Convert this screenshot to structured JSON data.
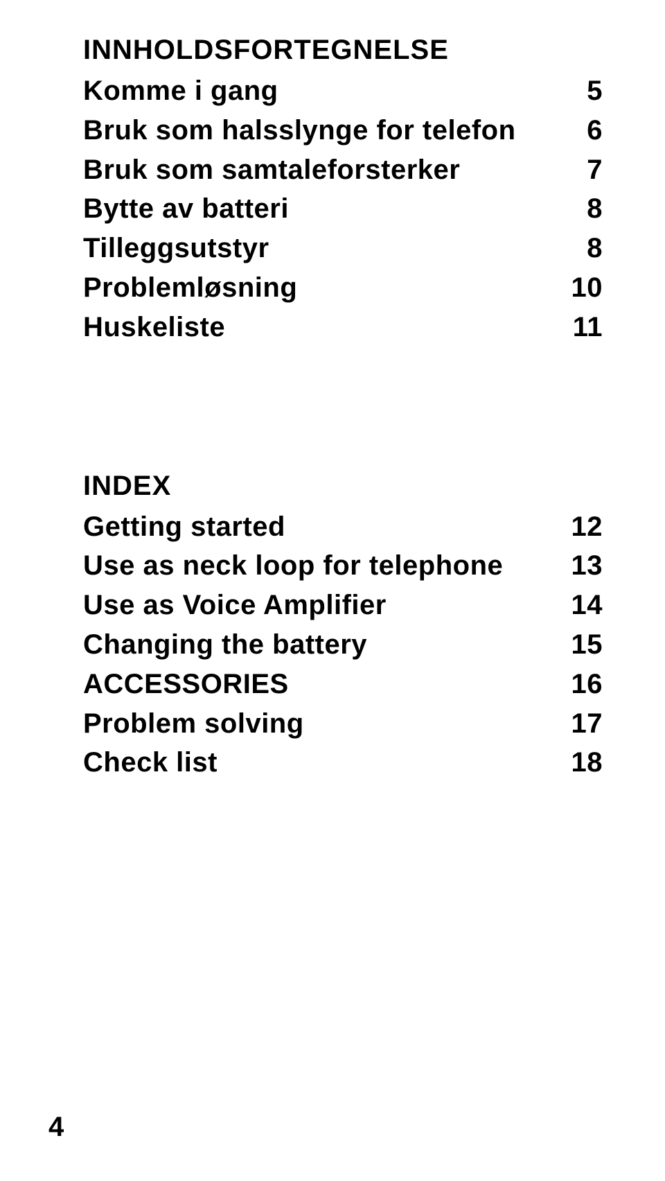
{
  "doc": {
    "text_color": "#000000",
    "background_color": "#ffffff",
    "heading_fontsize": 40,
    "row_fontsize": 40,
    "font_weight": 700
  },
  "toc1": {
    "heading": "INNHOLDSFORTEGNELSE",
    "items": [
      {
        "label": "Komme i gang",
        "page": "5"
      },
      {
        "label": "Bruk som halsslynge for telefon",
        "page": "6"
      },
      {
        "label": "Bruk som samtaleforsterker",
        "page": "7"
      },
      {
        "label": "Bytte av batteri",
        "page": "8"
      },
      {
        "label": "Tilleggsutstyr",
        "page": "8"
      },
      {
        "label": "Problemløsning",
        "page": "10"
      },
      {
        "label": "Huskeliste",
        "page": "11"
      }
    ]
  },
  "toc2": {
    "heading": "INDEX",
    "items": [
      {
        "label": "Getting started",
        "page": "12"
      },
      {
        "label": "Use as neck loop for telephone",
        "page": "13"
      },
      {
        "label": "Use as Voice Amplifier",
        "page": "14"
      },
      {
        "label": "Changing the battery",
        "page": "15"
      },
      {
        "label": "ACCESSORIES",
        "page": "16"
      },
      {
        "label": "Problem solving",
        "page": "17"
      },
      {
        "label": "Check list",
        "page": "18"
      }
    ]
  },
  "page_number": "4"
}
